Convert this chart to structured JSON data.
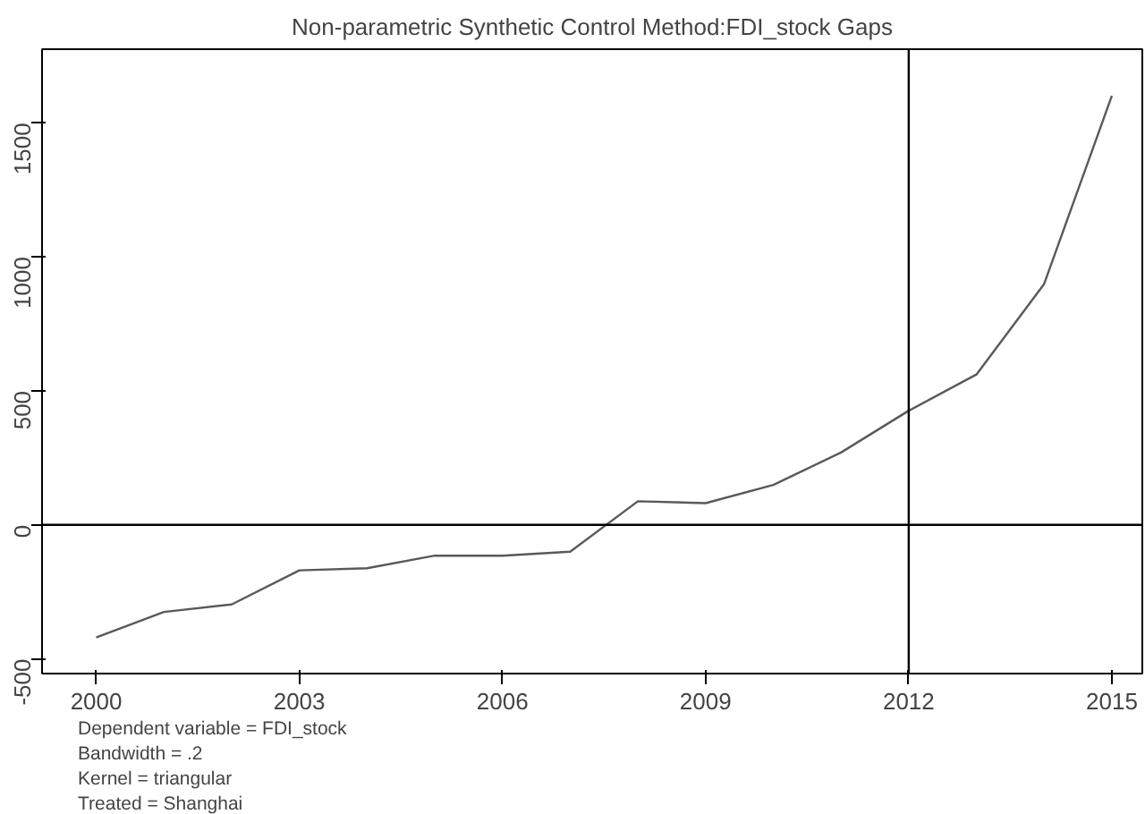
{
  "chart_data": {
    "type": "line",
    "title": "Non-parametric Synthetic Control Method:FDI_stock Gaps",
    "x": [
      2000,
      2001,
      2002,
      2003,
      2004,
      2005,
      2006,
      2007,
      2008,
      2009,
      2010,
      2011,
      2012,
      2013,
      2014,
      2015
    ],
    "series": [
      {
        "color": "#595959",
        "values": [
          -420,
          -325,
          -297,
          -170,
          -162,
          -115,
          -115,
          -100,
          88,
          81,
          149,
          270,
          426,
          561,
          899,
          1601
        ]
      }
    ],
    "xlim": [
      1999.2,
      2015.45
    ],
    "ylim": [
      -555,
      1775
    ],
    "xticks": [
      2000,
      2003,
      2006,
      2009,
      2012,
      2015
    ],
    "yticks": [
      -500,
      0,
      500,
      1000,
      1500
    ],
    "ref_lines": [
      {
        "axis": "y",
        "value": 0,
        "color": "#000000"
      },
      {
        "axis": "x",
        "value": 2012,
        "color": "#000000"
      }
    ],
    "annotations": [
      "Dependent variable = FDI_stock",
      "Bandwidth = .2",
      "Kernel = triangular",
      "Treated = Shanghai"
    ],
    "grid": false,
    "marker": "none",
    "line_style": "solid"
  }
}
